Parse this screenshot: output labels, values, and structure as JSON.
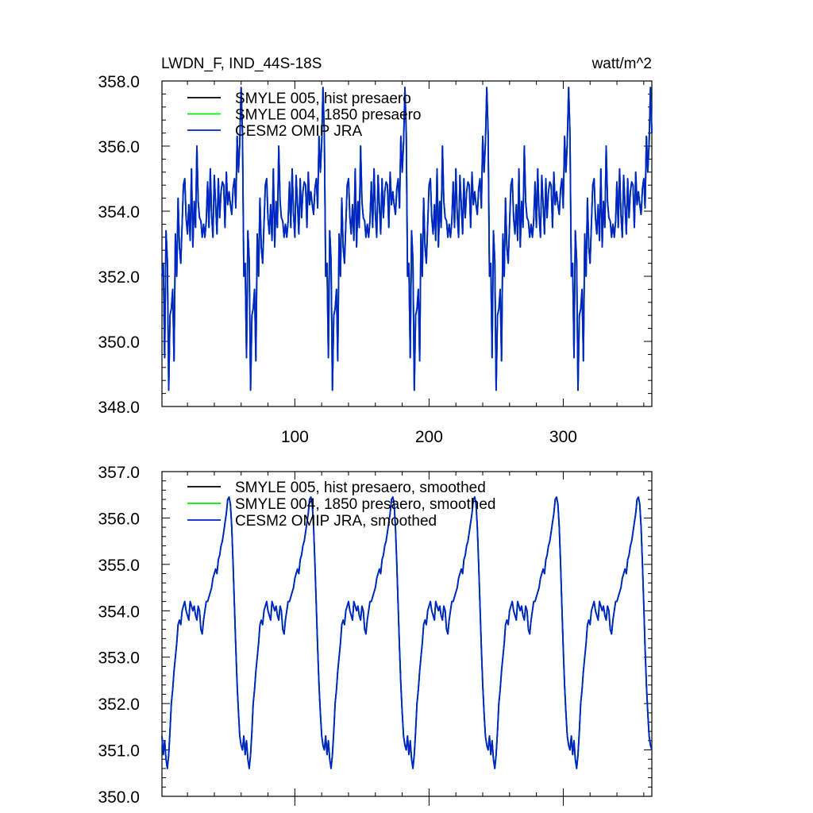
{
  "figure": {
    "title": "LWDN_F, IND_44S-18S",
    "units": "watt/m^2"
  },
  "colors": {
    "series_1": "#000000",
    "series_2": "#00ee00",
    "series_3": "#0022cc",
    "axis": "#000000"
  },
  "chart_data": [
    {
      "type": "line",
      "title": "LWDN_F, IND_44S-18S",
      "units": "watt/m^2",
      "xlabel": "",
      "ylabel": "",
      "xlim": [
        1,
        366
      ],
      "ylim": [
        348,
        358
      ],
      "xticks": [
        100,
        200,
        300
      ],
      "xtick_labels": [
        "100",
        "200",
        "300"
      ],
      "yticks": [
        348,
        350,
        352,
        354,
        356,
        358
      ],
      "ytick_labels": [
        "348.0",
        "350.0",
        "352.0",
        "354.0",
        "356.0",
        "358.0"
      ],
      "legend_position": "top-left",
      "grid": false,
      "series": [
        {
          "name": "SMYLE 005, hist presaero",
          "color": "#000000",
          "profile": "raw"
        },
        {
          "name": "SMYLE 004, 1850 presaero",
          "color": "#00ee00",
          "profile": "raw"
        },
        {
          "name": "CESM2 OMIP JRA",
          "color": "#0022cc",
          "profile": "raw"
        }
      ],
      "cycle_period": 61,
      "cycle_values": [
        352.0,
        352.4,
        349.5,
        353.4,
        352.5,
        348.5,
        350.8,
        351.0,
        351.6,
        349.4,
        353.3,
        352.0,
        354.4,
        352.9,
        352.4,
        353.6,
        354.8,
        355.0,
        353.8,
        353.3,
        354.2,
        353.1,
        355.3,
        352.9,
        354.3,
        353.5,
        356.0,
        354.3,
        353.8,
        353.7,
        353.2,
        353.6,
        353.2,
        353.7,
        354.9,
        353.5,
        355.3,
        353.9,
        353.2,
        355.1,
        354.2,
        353.3,
        355.0,
        353.8,
        354.6,
        354.9,
        354.8,
        353.5,
        355.2,
        354.2,
        354.6,
        354.2,
        353.9,
        354.7,
        355.0,
        354.1,
        356.3,
        355.2,
        356.1,
        357.8,
        356.4
      ],
      "sample_x": [
        1,
        31,
        60,
        122,
        182,
        243,
        304,
        366
      ],
      "sample_y": [
        352.0,
        356.0,
        357.8,
        357.8,
        357.8,
        357.8,
        357.8,
        355.8
      ]
    },
    {
      "type": "line",
      "title": "",
      "xlabel": "",
      "ylabel": "",
      "xlim": [
        1,
        366
      ],
      "ylim": [
        350,
        357
      ],
      "xticks": [
        100,
        200,
        300
      ],
      "yticks": [
        350,
        351,
        352,
        353,
        354,
        355,
        356,
        357
      ],
      "ytick_labels": [
        "350.0",
        "351.0",
        "352.0",
        "353.0",
        "354.0",
        "355.0",
        "356.0",
        "357.0"
      ],
      "legend_position": "top-left",
      "grid": false,
      "series": [
        {
          "name": "SMYLE 005, hist presaero, smoothed",
          "color": "#000000",
          "profile": "smoothed"
        },
        {
          "name": "SMYLE 004, 1850 presaero, smoothed",
          "color": "#00ee00",
          "profile": "smoothed"
        },
        {
          "name": "CESM2 OMIP JRA, smoothed",
          "color": "#0022cc",
          "profile": "smoothed"
        }
      ],
      "cycle_period": 61,
      "cycle_values": [
        351.3,
        350.9,
        351.2,
        350.8,
        350.6,
        350.9,
        351.4,
        352.0,
        352.3,
        352.7,
        353.0,
        353.3,
        353.7,
        353.8,
        353.7,
        354.0,
        354.1,
        354.2,
        354.0,
        353.9,
        353.8,
        354.2,
        354.1,
        354.0,
        354.1,
        353.9,
        353.8,
        354.1,
        354.0,
        353.6,
        353.5,
        353.8,
        354.0,
        354.2,
        354.2,
        354.3,
        354.4,
        354.5,
        354.7,
        354.8,
        354.9,
        354.8,
        355.1,
        355.2,
        355.4,
        355.5,
        355.7,
        355.9,
        356.1,
        356.4,
        356.45,
        356.3,
        355.8,
        355.0,
        354.1,
        353.2,
        352.4,
        351.8,
        351.3,
        351.1,
        351.0
      ],
      "sample_x": [
        1,
        60,
        90,
        150,
        366
      ],
      "sample_y": [
        351.3,
        356.45,
        351.0,
        354.0,
        356.4
      ]
    }
  ]
}
